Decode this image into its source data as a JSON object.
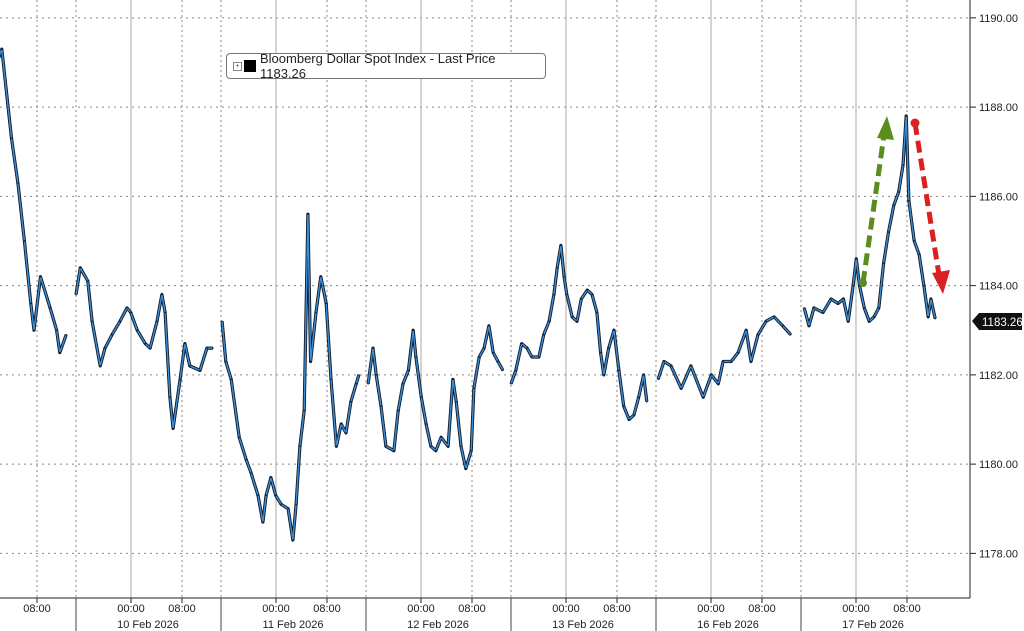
{
  "chart_data": {
    "type": "line",
    "title": "",
    "legend": {
      "label": "Bloomberg Dollar Spot Index - Last Price 1183.26",
      "placement": "top-left",
      "expand_icon": "plus-box-icon",
      "swatch_color": "#000000"
    },
    "last_price": "1183.26",
    "ylim": [
      1177.0,
      1190.4
    ],
    "y_axis_side": "right",
    "y_ticks": [
      "1178.00",
      "1180.00",
      "1182.00",
      "1184.00",
      "1186.00",
      "1188.00",
      "1190.00"
    ],
    "grid": true,
    "line_color": "#3a8fd8",
    "candle_color": "#111a2a",
    "x_time_labels": [
      "00:00",
      "08:00"
    ],
    "first_session_time_label": "08:00",
    "sessions": [
      {
        "label": "",
        "points": [
          [
            "2026-02-09T02:00",
            1189.1
          ],
          [
            "2026-02-09T02:30",
            1189.3
          ],
          [
            "2026-02-09T04:00",
            1187.3
          ],
          [
            "2026-02-09T05:00",
            1186.3
          ],
          [
            "2026-02-09T06:00",
            1185.0
          ],
          [
            "2026-02-09T07:00",
            1183.6
          ],
          [
            "2026-02-09T07:30",
            1183.0
          ],
          [
            "2026-02-09T08:30",
            1184.2
          ],
          [
            "2026-02-09T10:00",
            1183.5
          ],
          [
            "2026-02-09T11:00",
            1183.0
          ],
          [
            "2026-02-09T11:30",
            1182.5
          ],
          [
            "2026-02-09T12:30",
            1182.9
          ]
        ]
      },
      {
        "label": "10 Feb 2026",
        "points": [
          [
            "2026-02-09T15:30",
            1183.8
          ],
          [
            "2026-02-09T16:10",
            1184.4
          ],
          [
            "2026-02-09T17:20",
            1184.1
          ],
          [
            "2026-02-09T18:00",
            1183.2
          ],
          [
            "2026-02-09T19:15",
            1182.2
          ],
          [
            "2026-02-09T20:00",
            1182.6
          ],
          [
            "2026-02-09T21:05",
            1182.9
          ],
          [
            "2026-02-09T22:20",
            1183.2
          ],
          [
            "2026-02-09T23:25",
            1183.5
          ],
          [
            "2026-02-10T00:00",
            1183.4
          ],
          [
            "2026-02-10T01:00",
            1183.0
          ],
          [
            "2026-02-10T02:15",
            1182.7
          ],
          [
            "2026-02-10T03:00",
            1182.6
          ],
          [
            "2026-02-10T04:05",
            1183.2
          ],
          [
            "2026-02-10T04:50",
            1183.8
          ],
          [
            "2026-02-10T05:20",
            1183.4
          ],
          [
            "2026-02-10T06:05",
            1181.5
          ],
          [
            "2026-02-10T06:35",
            1180.8
          ],
          [
            "2026-02-10T07:40",
            1181.9
          ],
          [
            "2026-02-10T08:25",
            1182.7
          ],
          [
            "2026-02-10T09:10",
            1182.2
          ],
          [
            "2026-02-10T10:45",
            1182.1
          ],
          [
            "2026-02-10T11:50",
            1182.6
          ],
          [
            "2026-02-10T12:45",
            1182.6
          ]
        ]
      },
      {
        "label": "11 Feb 2026",
        "points": [
          [
            "2026-02-10T15:40",
            1183.2
          ],
          [
            "2026-02-10T16:15",
            1182.3
          ],
          [
            "2026-02-10T17:05",
            1181.9
          ],
          [
            "2026-02-10T18:20",
            1180.6
          ],
          [
            "2026-02-10T19:25",
            1180.1
          ],
          [
            "2026-02-10T20:10",
            1179.8
          ],
          [
            "2026-02-10T21:15",
            1179.3
          ],
          [
            "2026-02-10T22:00",
            1178.7
          ],
          [
            "2026-02-10T22:30",
            1179.3
          ],
          [
            "2026-02-10T23:15",
            1179.7
          ],
          [
            "2026-02-11T00:00",
            1179.3
          ],
          [
            "2026-02-11T00:50",
            1179.1
          ],
          [
            "2026-02-11T01:55",
            1179.0
          ],
          [
            "2026-02-11T02:40",
            1178.3
          ],
          [
            "2026-02-11T03:10",
            1179.1
          ],
          [
            "2026-02-11T03:45",
            1180.4
          ],
          [
            "2026-02-11T04:25",
            1181.2
          ],
          [
            "2026-02-11T05:00",
            1185.6
          ],
          [
            "2026-02-11T05:25",
            1182.3
          ],
          [
            "2026-02-11T06:15",
            1183.4
          ],
          [
            "2026-02-11T07:00",
            1184.2
          ],
          [
            "2026-02-11T07:50",
            1183.6
          ],
          [
            "2026-02-11T08:35",
            1181.9
          ],
          [
            "2026-02-11T09:25",
            1180.4
          ],
          [
            "2026-02-11T10:10",
            1180.9
          ],
          [
            "2026-02-11T10:55",
            1180.7
          ],
          [
            "2026-02-11T11:40",
            1181.4
          ],
          [
            "2026-02-11T12:30",
            1181.8
          ],
          [
            "2026-02-11T12:55",
            1182.0
          ]
        ]
      },
      {
        "label": "12 Feb 2026",
        "points": [
          [
            "2026-02-11T15:50",
            1181.8
          ],
          [
            "2026-02-11T16:35",
            1182.6
          ],
          [
            "2026-02-11T17:05",
            1182.0
          ],
          [
            "2026-02-11T17:50",
            1181.3
          ],
          [
            "2026-02-11T18:35",
            1180.4
          ],
          [
            "2026-02-11T19:50",
            1180.3
          ],
          [
            "2026-02-11T20:30",
            1181.2
          ],
          [
            "2026-02-11T21:15",
            1181.8
          ],
          [
            "2026-02-11T22:05",
            1182.1
          ],
          [
            "2026-02-11T22:50",
            1183.0
          ],
          [
            "2026-02-11T23:15",
            1182.4
          ],
          [
            "2026-02-12T00:05",
            1181.5
          ],
          [
            "2026-02-12T00:50",
            1180.9
          ],
          [
            "2026-02-12T01:35",
            1180.4
          ],
          [
            "2026-02-12T02:20",
            1180.3
          ],
          [
            "2026-02-12T03:10",
            1180.6
          ],
          [
            "2026-02-12T04:15",
            1180.4
          ],
          [
            "2026-02-12T05:00",
            1181.9
          ],
          [
            "2026-02-12T05:30",
            1181.4
          ],
          [
            "2026-02-12T06:15",
            1180.4
          ],
          [
            "2026-02-12T07:00",
            1179.9
          ],
          [
            "2026-02-12T07:50",
            1180.3
          ],
          [
            "2026-02-12T08:15",
            1181.7
          ],
          [
            "2026-02-12T09:05",
            1182.4
          ],
          [
            "2026-02-12T09:50",
            1182.6
          ],
          [
            "2026-02-12T10:35",
            1183.1
          ],
          [
            "2026-02-12T11:15",
            1182.5
          ],
          [
            "2026-02-12T12:00",
            1182.3
          ],
          [
            "2026-02-12T12:45",
            1182.1
          ]
        ]
      },
      {
        "label": "13 Feb 2026",
        "points": [
          [
            "2026-02-12T15:30",
            1181.8
          ],
          [
            "2026-02-12T16:15",
            1182.1
          ],
          [
            "2026-02-12T17:10",
            1182.7
          ],
          [
            "2026-02-12T18:00",
            1182.6
          ],
          [
            "2026-02-12T18:45",
            1182.4
          ],
          [
            "2026-02-12T19:50",
            1182.4
          ],
          [
            "2026-02-12T20:35",
            1182.9
          ],
          [
            "2026-02-12T21:25",
            1183.2
          ],
          [
            "2026-02-12T22:10",
            1183.8
          ],
          [
            "2026-02-12T22:40",
            1184.4
          ],
          [
            "2026-02-12T23:15",
            1184.9
          ],
          [
            "2026-02-12T23:45",
            1184.2
          ],
          [
            "2026-02-13T00:10",
            1183.8
          ],
          [
            "2026-02-13T01:00",
            1183.3
          ],
          [
            "2026-02-13T01:45",
            1183.2
          ],
          [
            "2026-02-13T02:25",
            1183.7
          ],
          [
            "2026-02-13T03:20",
            1183.9
          ],
          [
            "2026-02-13T04:05",
            1183.8
          ],
          [
            "2026-02-13T04:50",
            1183.4
          ],
          [
            "2026-02-13T05:25",
            1182.5
          ],
          [
            "2026-02-13T05:55",
            1182.0
          ],
          [
            "2026-02-13T06:40",
            1182.6
          ],
          [
            "2026-02-13T07:30",
            1183.0
          ],
          [
            "2026-02-13T08:15",
            1182.1
          ],
          [
            "2026-02-13T09:00",
            1181.3
          ],
          [
            "2026-02-13T09:50",
            1181.0
          ],
          [
            "2026-02-13T10:35",
            1181.1
          ],
          [
            "2026-02-13T11:20",
            1181.5
          ],
          [
            "2026-02-13T12:05",
            1182.0
          ],
          [
            "2026-02-13T12:35",
            1181.4
          ]
        ]
      },
      {
        "label": "16 Feb 2026",
        "points": [
          [
            "2026-02-15T15:50",
            1181.9
          ],
          [
            "2026-02-15T16:45",
            1182.3
          ],
          [
            "2026-02-15T17:50",
            1182.2
          ],
          [
            "2026-02-15T19:25",
            1181.7
          ],
          [
            "2026-02-15T20:55",
            1182.2
          ],
          [
            "2026-02-15T22:50",
            1181.5
          ],
          [
            "2026-02-16T00:05",
            1182.0
          ],
          [
            "2026-02-16T01:10",
            1181.8
          ],
          [
            "2026-02-16T01:55",
            1182.3
          ],
          [
            "2026-02-16T03:10",
            1182.3
          ],
          [
            "2026-02-16T04:15",
            1182.5
          ],
          [
            "2026-02-16T05:30",
            1183.0
          ],
          [
            "2026-02-16T06:15",
            1182.3
          ],
          [
            "2026-02-16T07:20",
            1182.9
          ],
          [
            "2026-02-16T08:35",
            1183.2
          ],
          [
            "2026-02-16T09:50",
            1183.3
          ],
          [
            "2026-02-16T11:10",
            1183.1
          ],
          [
            "2026-02-16T12:25",
            1182.9
          ]
        ]
      },
      {
        "label": "17 Feb 2026",
        "points": [
          [
            "2026-02-16T16:00",
            1183.5
          ],
          [
            "2026-02-16T16:45",
            1183.1
          ],
          [
            "2026-02-16T17:30",
            1183.5
          ],
          [
            "2026-02-16T18:55",
            1183.4
          ],
          [
            "2026-02-16T20:10",
            1183.7
          ],
          [
            "2026-02-16T21:15",
            1183.6
          ],
          [
            "2026-02-16T22:05",
            1183.7
          ],
          [
            "2026-02-16T22:50",
            1183.2
          ],
          [
            "2026-02-16T23:35",
            1184.0
          ],
          [
            "2026-02-17T00:05",
            1184.6
          ],
          [
            "2026-02-17T00:35",
            1184.0
          ],
          [
            "2026-02-17T01:20",
            1183.5
          ],
          [
            "2026-02-17T02:05",
            1183.2
          ],
          [
            "2026-02-17T02:50",
            1183.3
          ],
          [
            "2026-02-17T03:35",
            1183.5
          ],
          [
            "2026-02-17T04:20",
            1184.5
          ],
          [
            "2026-02-17T05:05",
            1185.2
          ],
          [
            "2026-02-17T05:55",
            1185.8
          ],
          [
            "2026-02-17T06:40",
            1186.1
          ],
          [
            "2026-02-17T07:20",
            1186.7
          ],
          [
            "2026-02-17T07:50",
            1187.8
          ],
          [
            "2026-02-17T08:15",
            1185.9
          ],
          [
            "2026-02-17T09:05",
            1185.0
          ],
          [
            "2026-02-17T09:50",
            1184.7
          ],
          [
            "2026-02-17T10:35",
            1184.0
          ],
          [
            "2026-02-17T11:15",
            1183.3
          ],
          [
            "2026-02-17T11:40",
            1183.7
          ],
          [
            "2026-02-17T12:20",
            1183.26
          ]
        ]
      }
    ],
    "annotations": [
      {
        "type": "arrow-up",
        "color": "#5b8c1e"
      },
      {
        "type": "arrow-down",
        "color": "#d92121"
      }
    ]
  }
}
